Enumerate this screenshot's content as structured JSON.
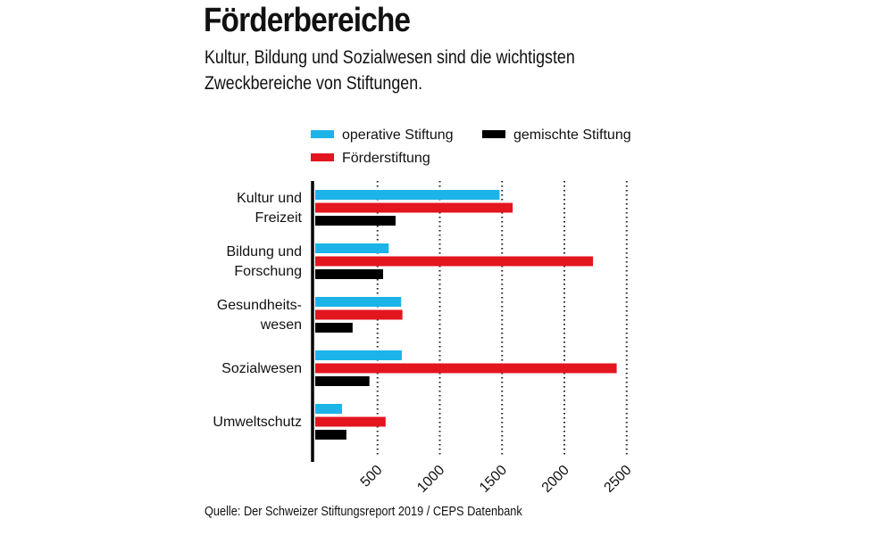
{
  "title": "Förderbereiche",
  "subtitle_lines": [
    "Kultur, Bildung und Sozialwesen sind die wichtigsten",
    "Zweckbereiche von Stiftungen."
  ],
  "source": "Quelle: Der Schweizer Stiftungsreport 2019 / CEPS Datenbank",
  "chart_data": {
    "type": "bar",
    "orientation": "horizontal",
    "title": "Förderbereiche",
    "subtitle": "Kultur, Bildung und Sozialwesen sind die wichtigsten Zweckbereiche von Stiftungen.",
    "categories": [
      [
        "Kultur und",
        "Freizeit"
      ],
      [
        "Bildung und",
        "Forschung"
      ],
      [
        "Gesundheits-",
        "wesen"
      ],
      [
        "Sozialwesen"
      ],
      [
        "Umweltschutz"
      ]
    ],
    "series": [
      {
        "name": "operative Stiftung",
        "color": "#1cb4e8",
        "values": [
          1480,
          590,
          690,
          695,
          215
        ]
      },
      {
        "name": "Förderstiftung",
        "color": "#e3151f",
        "values": [
          1585,
          2230,
          700,
          2420,
          565
        ]
      },
      {
        "name": "gemischte Stiftung",
        "color": "#000000",
        "values": [
          645,
          545,
          300,
          435,
          250
        ]
      }
    ],
    "xticks": [
      500,
      1000,
      1500,
      2000,
      2500
    ],
    "xlim": [
      0,
      2500
    ],
    "grid": "vertical dotted",
    "legend": "top"
  }
}
